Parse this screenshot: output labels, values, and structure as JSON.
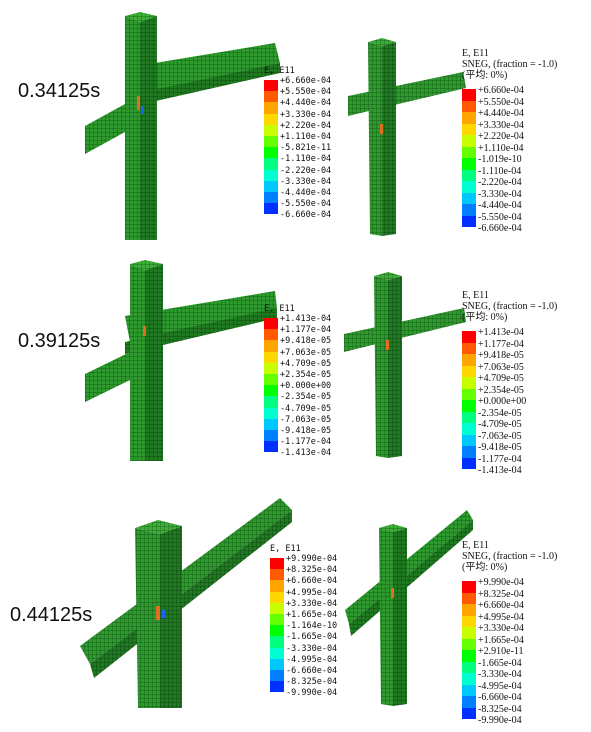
{
  "colors": [
    "#ff0000",
    "#ff5a00",
    "#ffa500",
    "#ffd700",
    "#c8ff00",
    "#64ff00",
    "#00ff00",
    "#00ff80",
    "#00ffd0",
    "#00c8ff",
    "#0080ff",
    "#0030ff",
    "#0000c8"
  ],
  "rows": [
    {
      "time": "0.34125s",
      "left_legend": {
        "title": "E, E11",
        "labels": [
          "+6.660e-04",
          "+5.550e-04",
          "+4.440e-04",
          "+3.330e-04",
          "+2.220e-04",
          "+1.110e-04",
          "-5.821e-11",
          "-1.110e-04",
          "-2.220e-04",
          "-3.330e-04",
          "-4.440e-04",
          "-5.550e-04",
          "-6.660e-04"
        ]
      },
      "right_legend": {
        "title": "E, E11",
        "subtitle": "SNEG, (fraction = -1.0)",
        "avg": "(平均: 0%)",
        "labels": [
          "+6.660e-04",
          "+5.550e-04",
          "+4.440e-04",
          "+3.330e-04",
          "+2.220e-04",
          "+1.110e-04",
          "-1.019e-10",
          "-1.110e-04",
          "-2.220e-04",
          "-3.330e-04",
          "-4.440e-04",
          "-5.550e-04",
          "-6.660e-04"
        ]
      }
    },
    {
      "time": "0.39125s",
      "left_legend": {
        "title": "E, E11",
        "labels": [
          "+1.413e-04",
          "+1.177e-04",
          "+9.418e-05",
          "+7.063e-05",
          "+4.709e-05",
          "+2.354e-05",
          "+0.000e+00",
          "-2.354e-05",
          "-4.709e-05",
          "-7.063e-05",
          "-9.418e-05",
          "-1.177e-04",
          "-1.413e-04"
        ]
      },
      "right_legend": {
        "title": "E, E11",
        "subtitle": "SNEG, (fraction = -1.0)",
        "avg": "(平均: 0%)",
        "labels": [
          "+1.413e-04",
          "+1.177e-04",
          "+9.418e-05",
          "+7.063e-05",
          "+4.709e-05",
          "+2.354e-05",
          "+0.000e+00",
          "-2.354e-05",
          "-4.709e-05",
          "-7.063e-05",
          "-9.418e-05",
          "-1.177e-04",
          "-1.413e-04"
        ]
      }
    },
    {
      "time": "0.44125s",
      "left_legend": {
        "title": "E, E11",
        "labels": [
          "+9.990e-04",
          "+8.325e-04",
          "+6.660e-04",
          "+4.995e-04",
          "+3.330e-04",
          "+1.665e-04",
          "-1.164e-10",
          "-1.665e-04",
          "-3.330e-04",
          "-4.995e-04",
          "-6.660e-04",
          "-8.325e-04",
          "-9.990e-04"
        ]
      },
      "right_legend": {
        "title": "E, E11",
        "subtitle": "SNEG, (fraction = -1.0)",
        "avg": "(平均: 0%)",
        "labels": [
          "+9.990e-04",
          "+8.325e-04",
          "+6.660e-04",
          "+4.995e-04",
          "+3.330e-04",
          "+1.665e-04",
          "+2.910e-11",
          "-1.665e-04",
          "-3.330e-04",
          "-4.995e-04",
          "-6.660e-04",
          "-8.325e-04",
          "-9.990e-04"
        ]
      }
    }
  ]
}
